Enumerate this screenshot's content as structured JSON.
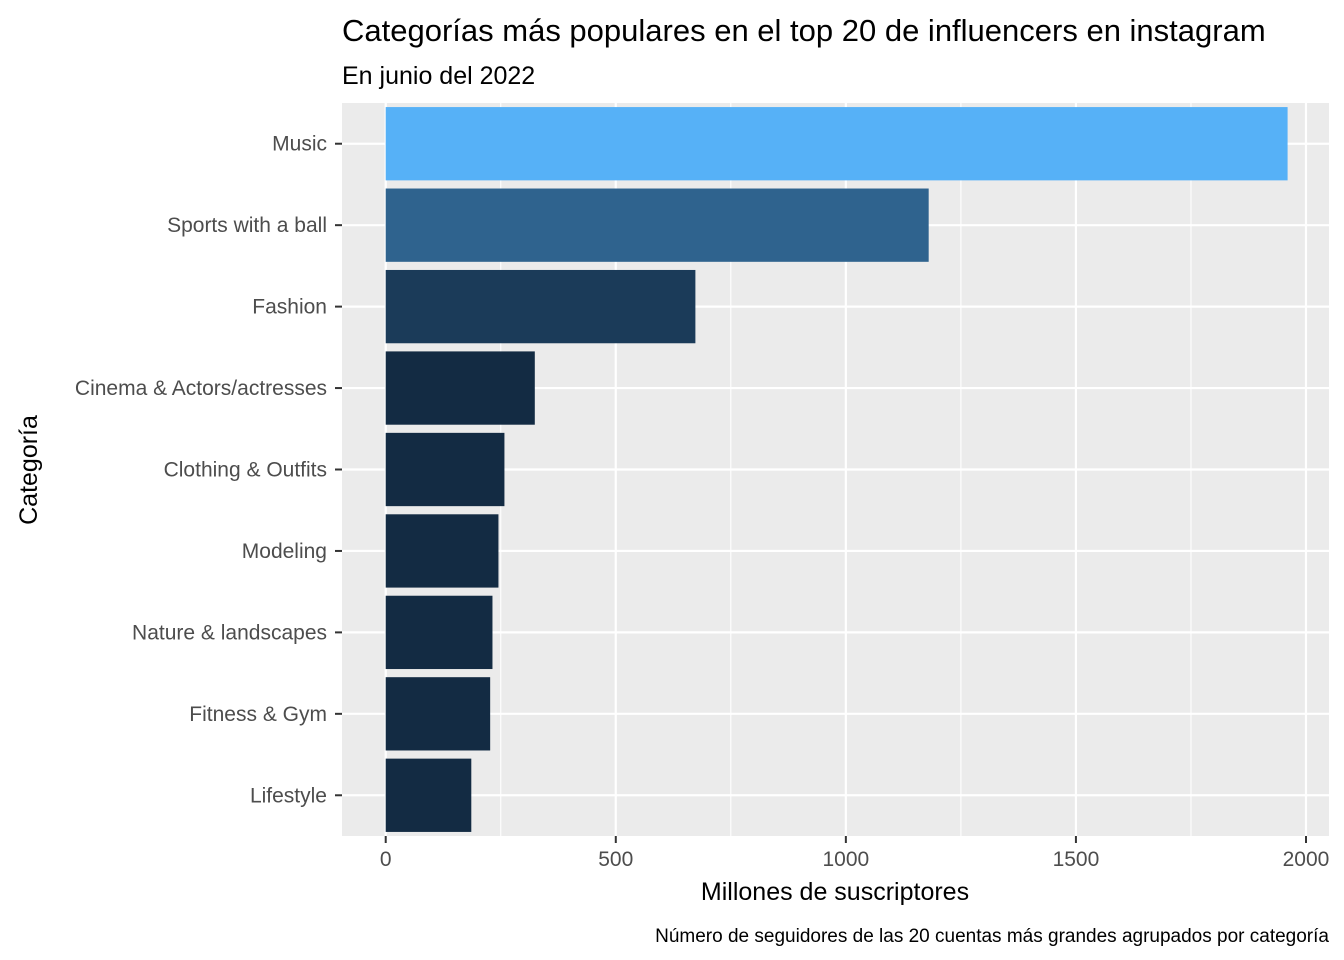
{
  "chart_data": {
    "type": "bar",
    "orientation": "horizontal",
    "title": "Categorías más populares en el top 20 de influencers en instagram",
    "subtitle": "En junio del 2022",
    "xlabel": "Millones de suscriptores",
    "ylabel": "Categoría",
    "caption": "Número de seguidores de las 20 cuentas más grandes agrupados por categoría",
    "categories": [
      "Music",
      "Sports with a ball",
      "Fashion",
      "Cinema & Actors/actresses",
      "Clothing & Outfits",
      "Modeling",
      "Nature & landscapes",
      "Fitness & Gym",
      "Lifestyle"
    ],
    "values": [
      1960,
      1180,
      673,
      324,
      258,
      245,
      232,
      227,
      186
    ],
    "xlim": [
      -95,
      2050
    ],
    "xticks": [
      0,
      500,
      1000,
      1500,
      2000
    ],
    "grid": true,
    "legend": "none",
    "colors": {
      "panel_background": "#ebebeb",
      "grid_line": "#ffffff",
      "bar_gradient_low": "#132b43",
      "bar_gradient_high": "#56b1f7",
      "tick_text": "#4d4d4d"
    }
  }
}
